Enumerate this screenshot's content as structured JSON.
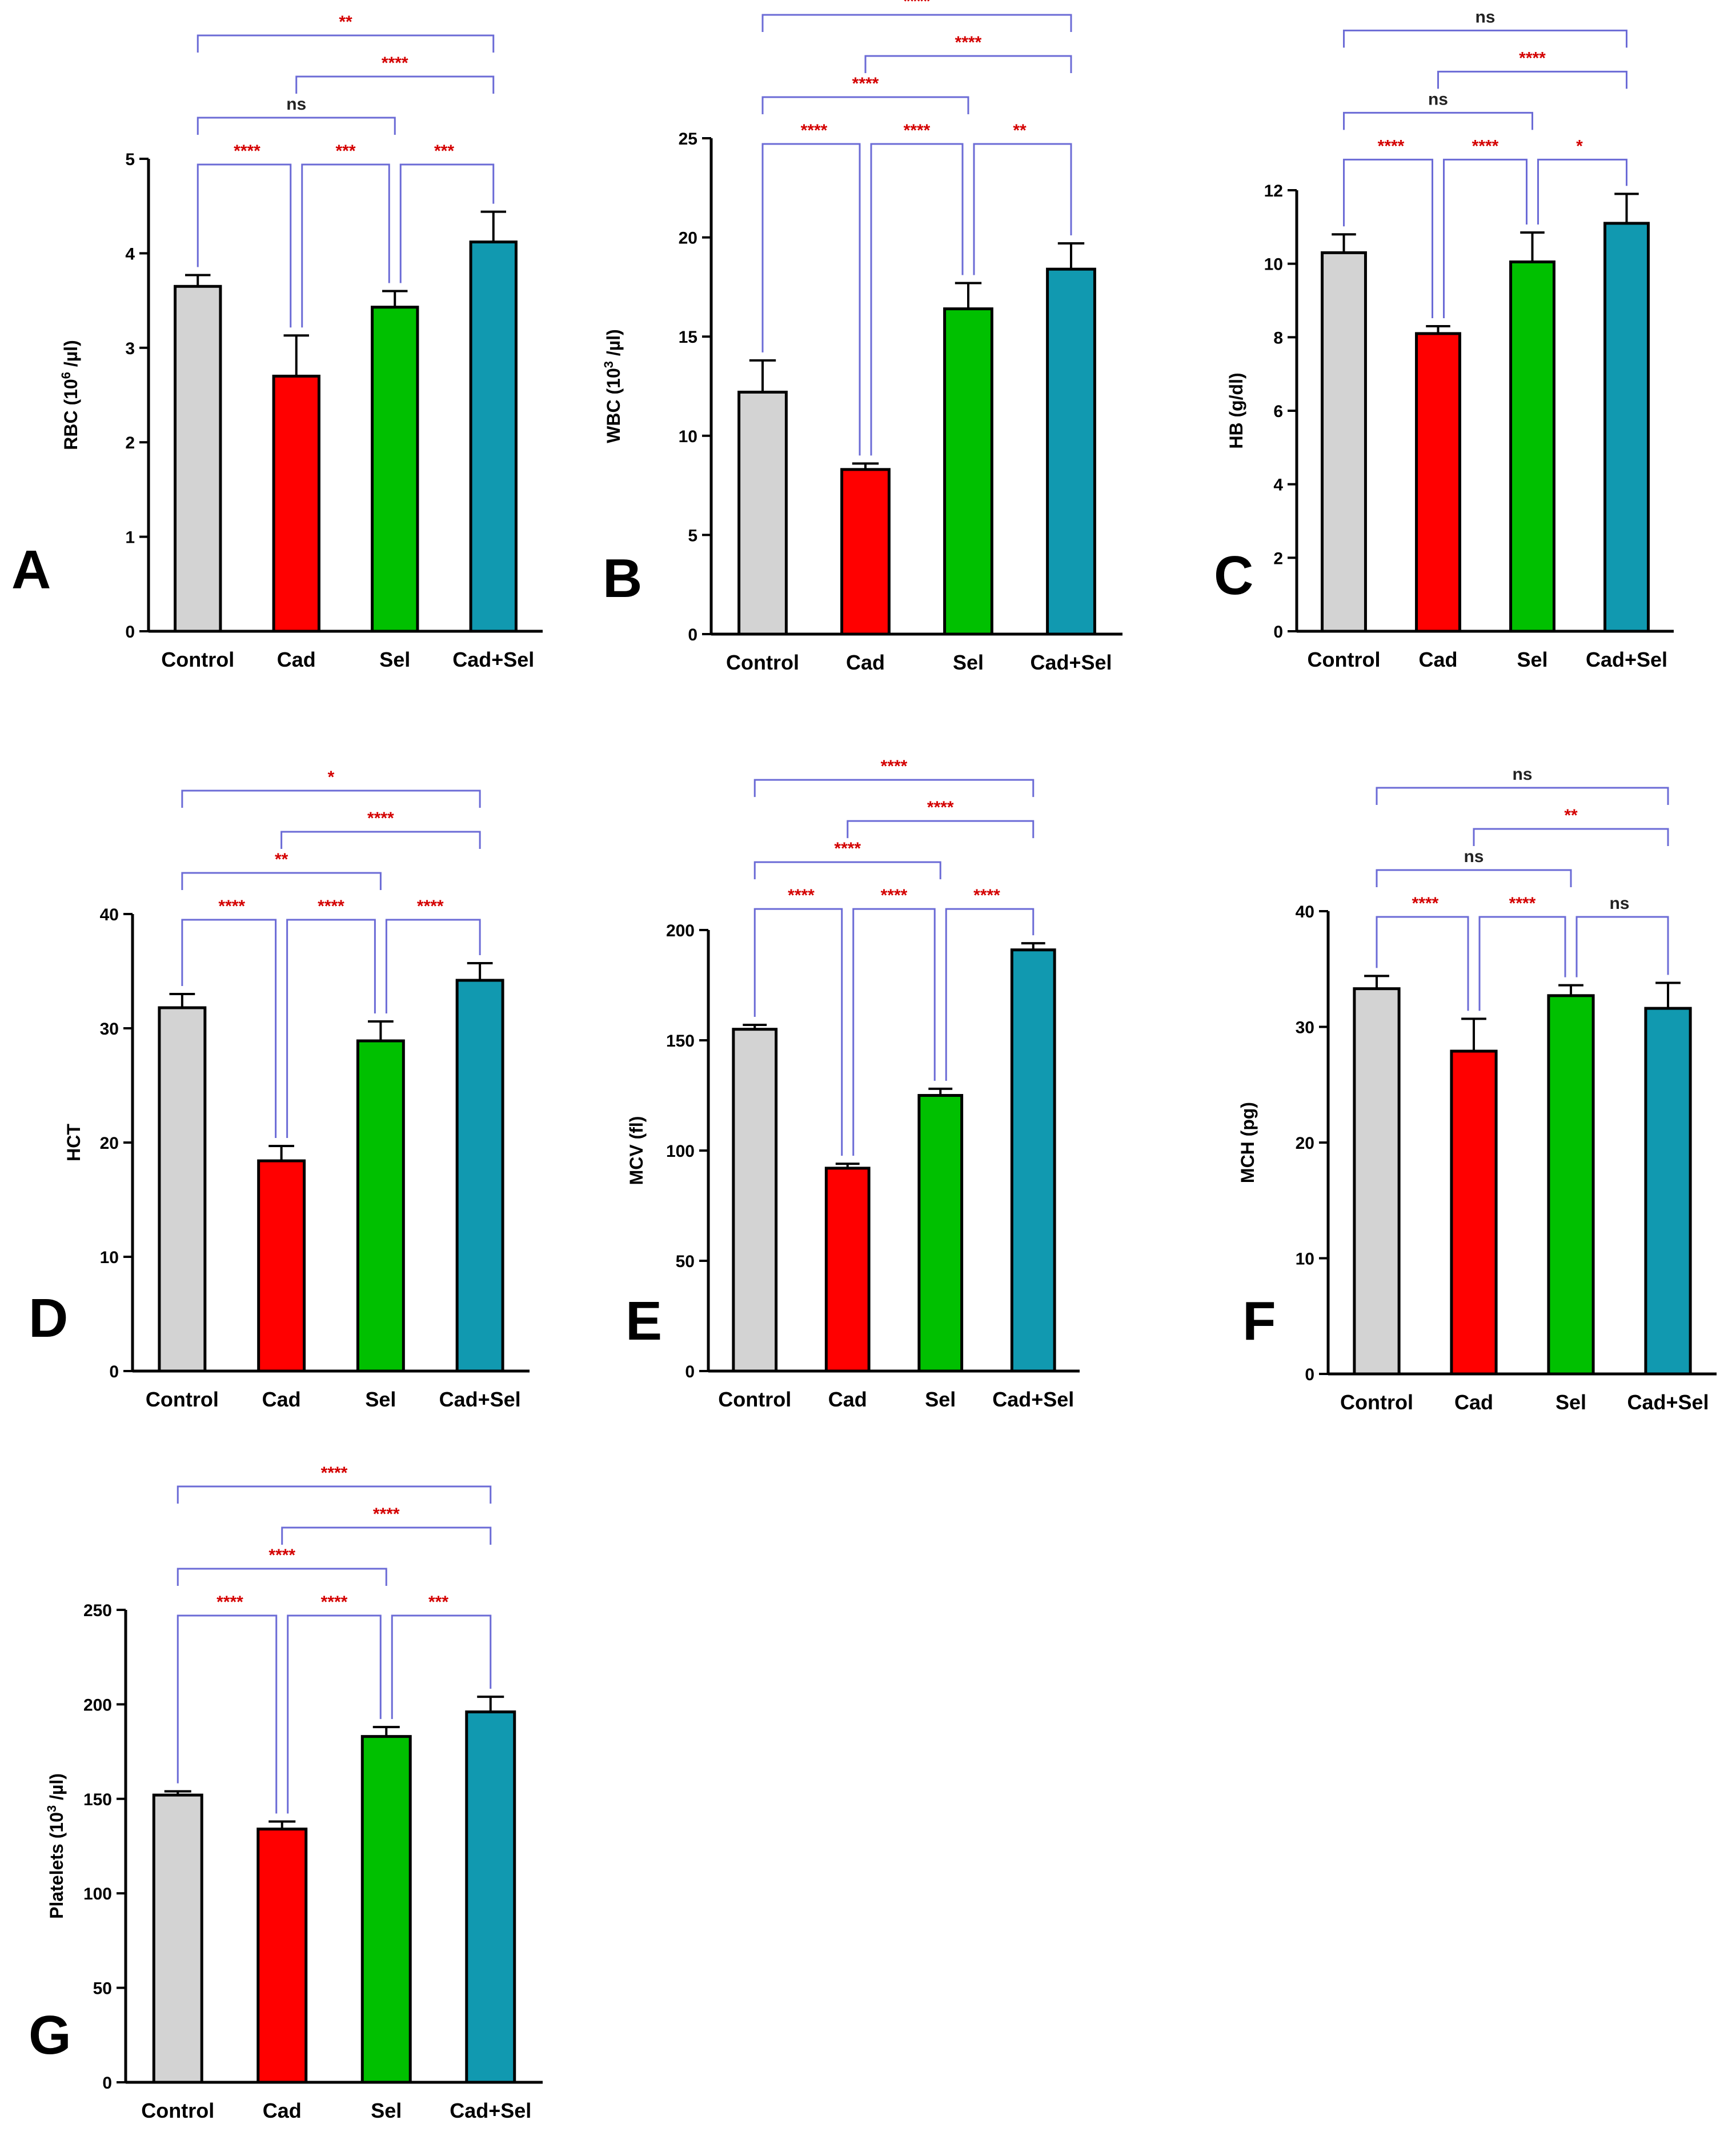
{
  "colors": {
    "Control": "#d3d3d3",
    "Cad": "#ff0000",
    "Sel": "#00c000",
    "Cad+Sel": "#1199b0",
    "bracket": "#6b6bd6",
    "significant": "#d40000",
    "ns": "#222222",
    "outline": "#000000"
  },
  "chart_data": [
    {
      "panel": "A",
      "type": "bar",
      "ylabel": "RBC (10",
      "ylabel_sup": "6",
      "ylabel_end": " /µl)",
      "categories": [
        "Control",
        "Cad",
        "Sel",
        "Cad+Sel"
      ],
      "values": [
        3.65,
        2.7,
        3.43,
        4.12
      ],
      "errors": [
        0.12,
        0.43,
        0.17,
        0.32
      ],
      "ylim": [
        0,
        5
      ],
      "yticks": [
        0,
        1,
        2,
        3,
        4,
        5
      ],
      "comparisons": [
        {
          "from": 0,
          "to": 1,
          "label": "****",
          "level": 0
        },
        {
          "from": 1,
          "to": 2,
          "label": "***",
          "level": 0
        },
        {
          "from": 2,
          "to": 3,
          "label": "***",
          "level": 0
        },
        {
          "from": 0,
          "to": 2,
          "label": "ns",
          "level": 1
        },
        {
          "from": 1,
          "to": 3,
          "label": "****",
          "level": 2
        },
        {
          "from": 0,
          "to": 3,
          "label": "**",
          "level": 3
        }
      ]
    },
    {
      "panel": "B",
      "type": "bar",
      "ylabel": "WBC (10",
      "ylabel_sup": "3",
      "ylabel_end": " /µl)",
      "categories": [
        "Control",
        "Cad",
        "Sel",
        "Cad+Sel"
      ],
      "values": [
        12.2,
        8.3,
        16.4,
        18.4
      ],
      "errors": [
        1.6,
        0.3,
        1.3,
        1.3
      ],
      "ylim": [
        0,
        25
      ],
      "yticks": [
        0,
        5,
        10,
        15,
        20,
        25
      ],
      "comparisons": [
        {
          "from": 0,
          "to": 1,
          "label": "****",
          "level": 0
        },
        {
          "from": 1,
          "to": 2,
          "label": "****",
          "level": 0
        },
        {
          "from": 2,
          "to": 3,
          "label": "**",
          "level": 0
        },
        {
          "from": 0,
          "to": 2,
          "label": "****",
          "level": 1
        },
        {
          "from": 1,
          "to": 3,
          "label": "****",
          "level": 2
        },
        {
          "from": 0,
          "to": 3,
          "label": "****",
          "level": 3
        }
      ]
    },
    {
      "panel": "C",
      "type": "bar",
      "ylabel": "HB (g/dl)",
      "ylabel_sup": "",
      "ylabel_end": "",
      "categories": [
        "Control",
        "Cad",
        "Sel",
        "Cad+Sel"
      ],
      "values": [
        10.3,
        8.1,
        10.05,
        11.1
      ],
      "errors": [
        0.5,
        0.2,
        0.8,
        0.8
      ],
      "ylim": [
        0,
        12
      ],
      "yticks": [
        0,
        2,
        4,
        6,
        8,
        10,
        12
      ],
      "comparisons": [
        {
          "from": 0,
          "to": 1,
          "label": "****",
          "level": 0
        },
        {
          "from": 1,
          "to": 2,
          "label": "****",
          "level": 0
        },
        {
          "from": 2,
          "to": 3,
          "label": "*",
          "level": 0
        },
        {
          "from": 0,
          "to": 2,
          "label": "ns",
          "level": 1
        },
        {
          "from": 1,
          "to": 3,
          "label": "****",
          "level": 2
        },
        {
          "from": 0,
          "to": 3,
          "label": "ns",
          "level": 3
        }
      ]
    },
    {
      "panel": "D",
      "type": "bar",
      "ylabel": "HCT",
      "ylabel_sup": "",
      "ylabel_end": "",
      "categories": [
        "Control",
        "Cad",
        "Sel",
        "Cad+Sel"
      ],
      "values": [
        31.8,
        18.4,
        28.9,
        34.2
      ],
      "errors": [
        1.2,
        1.3,
        1.7,
        1.5
      ],
      "ylim": [
        0,
        40
      ],
      "yticks": [
        0,
        10,
        20,
        30,
        40
      ],
      "comparisons": [
        {
          "from": 0,
          "to": 1,
          "label": "****",
          "level": 0
        },
        {
          "from": 1,
          "to": 2,
          "label": "****",
          "level": 0
        },
        {
          "from": 2,
          "to": 3,
          "label": "****",
          "level": 0
        },
        {
          "from": 0,
          "to": 2,
          "label": "**",
          "level": 1
        },
        {
          "from": 1,
          "to": 3,
          "label": "****",
          "level": 2
        },
        {
          "from": 0,
          "to": 3,
          "label": "*",
          "level": 3
        }
      ]
    },
    {
      "panel": "E",
      "type": "bar",
      "ylabel": "MCV (fl)",
      "ylabel_sup": "",
      "ylabel_end": "",
      "categories": [
        "Control",
        "Cad",
        "Sel",
        "Cad+Sel"
      ],
      "values": [
        155,
        92,
        125,
        191
      ],
      "errors": [
        2,
        2,
        3,
        3
      ],
      "ylim": [
        0,
        200
      ],
      "yticks": [
        0,
        50,
        100,
        150,
        200
      ],
      "comparisons": [
        {
          "from": 0,
          "to": 1,
          "label": "****",
          "level": 0
        },
        {
          "from": 1,
          "to": 2,
          "label": "****",
          "level": 0
        },
        {
          "from": 2,
          "to": 3,
          "label": "****",
          "level": 0
        },
        {
          "from": 0,
          "to": 2,
          "label": "****",
          "level": 1
        },
        {
          "from": 1,
          "to": 3,
          "label": "****",
          "level": 2
        },
        {
          "from": 0,
          "to": 3,
          "label": "****",
          "level": 3
        }
      ]
    },
    {
      "panel": "F",
      "type": "bar",
      "ylabel": "MCH (pg)",
      "ylabel_sup": "",
      "ylabel_end": "",
      "categories": [
        "Control",
        "Cad",
        "Sel",
        "Cad+Sel"
      ],
      "values": [
        33.3,
        27.9,
        32.7,
        31.6
      ],
      "errors": [
        1.1,
        2.8,
        0.9,
        2.2
      ],
      "ylim": [
        0,
        40
      ],
      "yticks": [
        0,
        10,
        20,
        30,
        40
      ],
      "comparisons": [
        {
          "from": 0,
          "to": 1,
          "label": "****",
          "level": 0
        },
        {
          "from": 1,
          "to": 2,
          "label": "****",
          "level": 0
        },
        {
          "from": 2,
          "to": 3,
          "label": "ns",
          "level": 0
        },
        {
          "from": 0,
          "to": 2,
          "label": "ns",
          "level": 1
        },
        {
          "from": 1,
          "to": 3,
          "label": "**",
          "level": 2
        },
        {
          "from": 0,
          "to": 3,
          "label": "ns",
          "level": 3
        }
      ]
    },
    {
      "panel": "G",
      "type": "bar",
      "ylabel": "Platelets (10",
      "ylabel_sup": "3",
      "ylabel_end": " /µl)",
      "categories": [
        "Control",
        "Cad",
        "Sel",
        "Cad+Sel"
      ],
      "values": [
        152,
        134,
        183,
        196
      ],
      "errors": [
        2,
        4,
        5,
        8
      ],
      "ylim": [
        0,
        250
      ],
      "yticks": [
        0,
        50,
        100,
        150,
        200,
        250
      ],
      "comparisons": [
        {
          "from": 0,
          "to": 1,
          "label": "****",
          "level": 0
        },
        {
          "from": 1,
          "to": 2,
          "label": "****",
          "level": 0
        },
        {
          "from": 2,
          "to": 3,
          "label": "***",
          "level": 0
        },
        {
          "from": 0,
          "to": 2,
          "label": "****",
          "level": 1
        },
        {
          "from": 1,
          "to": 3,
          "label": "****",
          "level": 2
        },
        {
          "from": 0,
          "to": 3,
          "label": "****",
          "level": 3
        }
      ]
    }
  ]
}
